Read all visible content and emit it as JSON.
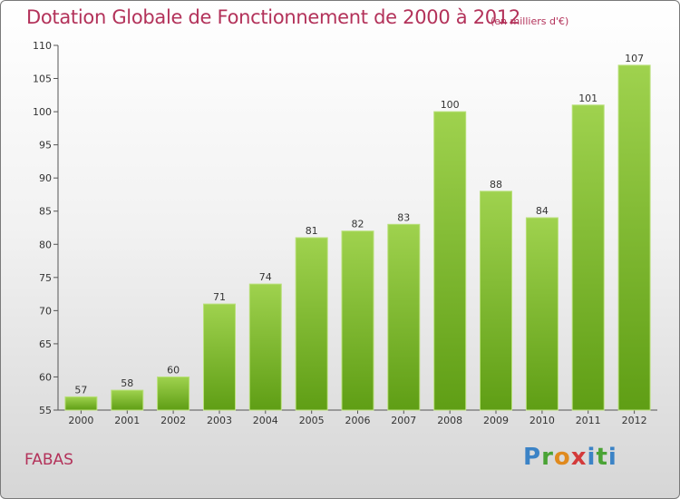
{
  "header": {
    "title": "Dotation Globale de Fonctionnement de 2000 à 2012",
    "unit": "(en milliers d'€)"
  },
  "footer": {
    "commune": "FABAS",
    "logo": "Proxiti"
  },
  "colors": {
    "accent": "#b3325a",
    "bar_top": "#9fd24e",
    "bar_bottom": "#5f9e15"
  },
  "chart_data": {
    "type": "bar",
    "categories": [
      "2000",
      "2001",
      "2002",
      "2003",
      "2004",
      "2005",
      "2006",
      "2007",
      "2008",
      "2009",
      "2010",
      "2011",
      "2012"
    ],
    "values": [
      57,
      58,
      60,
      71,
      74,
      81,
      82,
      83,
      100,
      88,
      84,
      101,
      107
    ],
    "ylim": [
      55,
      110
    ],
    "yticks": [
      55,
      60,
      65,
      70,
      75,
      80,
      85,
      90,
      95,
      100,
      105,
      110
    ],
    "grid": false,
    "data_labels": true
  }
}
